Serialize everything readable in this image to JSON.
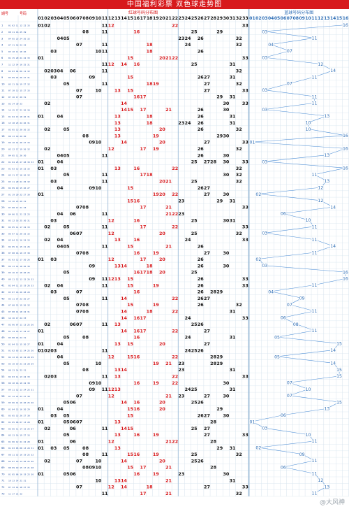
{
  "page": {
    "title": "中国福利彩票  双色球走势图"
  },
  "header": {
    "period_label": "期号",
    "prize_label": "号码",
    "red_zone_label": "红球号码分布图",
    "blue_zone_label": "蓝球号码分布图",
    "red_numbers": [
      "01",
      "02",
      "03",
      "04",
      "05",
      "06",
      "07",
      "08",
      "09",
      "10",
      "11",
      "12",
      "13",
      "14",
      "15",
      "16",
      "17",
      "18",
      "19",
      "20",
      "21",
      "22",
      "23",
      "24",
      "25",
      "26",
      "27",
      "28",
      "29",
      "30",
      "31",
      "32",
      "33"
    ],
    "blue_numbers": [
      "01",
      "02",
      "03",
      "04",
      "05",
      "06",
      "07",
      "08",
      "09",
      "10",
      "11",
      "12",
      "13",
      "14",
      "15",
      "16"
    ]
  },
  "watermark": "@大风神",
  "colors": {
    "title_bg": "#d7191c",
    "grid_line": "#d7e3ee",
    "zone_divider": "#9ebcd8",
    "red_number": "#d7191c",
    "black_number": "#111111",
    "blue_number": "#2d6db5",
    "blue_line": "#4f8fd6",
    "period_text": "#1f4fa3"
  },
  "chart_data": {
    "type": "table",
    "title": "中国福利彩票  双色球走势图",
    "red_range": [
      1,
      33
    ],
    "blue_range": [
      1,
      16
    ],
    "draws": [
      {
        "reds": [
          1,
          2,
          11,
          12,
          22,
          33
        ],
        "blue": 16
      },
      {
        "reds": [
          8,
          11,
          16,
          25,
          29
        ],
        "blue": 3
      },
      {
        "reds": [
          4,
          5,
          23,
          24,
          26,
          32
        ],
        "blue": 11
      },
      {
        "reds": [
          7,
          11,
          18,
          24,
          32
        ],
        "blue": 4
      },
      {
        "reds": [
          3,
          10,
          11,
          18,
          26
        ],
        "blue": 7
      },
      {
        "reds": [
          1,
          15,
          20,
          21,
          22,
          33
        ],
        "blue": 3
      },
      {
        "reds": [
          11,
          12,
          14,
          16,
          25,
          31
        ],
        "blue": 12
      },
      {
        "reds": [
          2,
          3,
          4,
          6,
          11,
          32
        ],
        "blue": 14
      },
      {
        "reds": [
          3,
          9,
          15,
          26,
          27,
          31
        ],
        "blue": 11
      },
      {
        "reds": [
          5,
          11,
          18,
          19,
          27,
          32
        ],
        "blue": 7
      },
      {
        "reds": [
          7,
          10,
          13,
          15,
          27,
          33
        ],
        "blue": 3
      },
      {
        "reds": [
          7,
          16,
          17,
          29,
          31
        ],
        "blue": 11
      },
      {
        "reds": [
          2,
          14,
          30,
          33
        ],
        "blue": 11
      },
      {
        "reds": [
          14,
          15,
          17,
          21,
          26,
          30
        ],
        "blue": 3
      },
      {
        "reds": [
          1,
          4,
          13,
          18,
          26,
          31
        ],
        "blue": 13
      },
      {
        "reds": [
          13,
          18,
          23,
          24,
          26,
          31
        ],
        "blue": 10
      },
      {
        "reds": [
          2,
          5,
          13,
          20,
          26,
          32
        ],
        "blue": 10
      },
      {
        "reds": [
          8,
          13,
          19,
          29,
          30
        ],
        "blue": 16
      },
      {
        "reds": [
          9,
          10,
          14,
          20,
          27,
          33
        ],
        "blue": 1
      },
      {
        "reds": [
          2,
          12,
          17,
          19,
          26,
          32
        ],
        "blue": 16
      },
      {
        "reds": [
          4,
          5,
          11,
          26,
          30
        ],
        "blue": 13
      },
      {
        "reds": [
          1,
          4,
          25,
          27,
          28,
          30,
          33
        ],
        "blue": 3
      },
      {
        "reds": [
          1,
          3,
          13,
          16,
          22,
          32
        ],
        "blue": 16
      },
      {
        "reds": [
          5,
          11,
          17,
          18,
          30,
          32
        ],
        "blue": 11
      },
      {
        "reds": [
          3,
          11,
          20,
          21,
          25,
          32
        ],
        "blue": 13
      },
      {
        "reds": [
          4,
          9,
          10,
          15,
          26,
          27
        ],
        "blue": 12
      },
      {
        "reds": [
          1,
          19,
          20,
          22,
          27,
          30
        ],
        "blue": 2
      },
      {
        "reds": [
          15,
          16,
          23,
          29,
          31
        ],
        "blue": 12
      },
      {
        "reds": [
          7,
          8,
          17,
          21,
          33
        ],
        "blue": 14
      },
      {
        "reds": [
          4,
          6,
          11,
          21,
          22,
          23
        ],
        "blue": 6
      },
      {
        "reds": [
          3,
          12,
          16,
          25,
          30,
          31
        ],
        "blue": 10
      },
      {
        "reds": [
          2,
          5,
          11,
          17,
          22,
          33
        ],
        "blue": 11
      },
      {
        "reds": [
          6,
          7,
          12,
          20,
          25,
          32
        ],
        "blue": 3
      },
      {
        "reds": [
          2,
          4,
          13,
          16,
          24,
          33
        ],
        "blue": 11
      },
      {
        "reds": [
          4,
          5,
          11,
          15,
          21,
          26
        ],
        "blue": 14
      },
      {
        "reds": [
          7,
          8,
          16,
          19,
          27,
          30
        ],
        "blue": 11
      },
      {
        "reds": [
          1,
          3,
          12,
          17,
          20,
          26
        ],
        "blue": 2
      },
      {
        "reds": [
          9,
          13,
          14,
          18,
          26,
          30
        ],
        "blue": 3
      },
      {
        "reds": [
          5,
          16,
          17,
          18,
          20,
          25
        ],
        "blue": 16
      },
      {
        "reds": [
          9,
          11,
          12,
          13,
          15,
          26,
          33
        ],
        "blue": 16
      },
      {
        "reds": [
          2,
          4,
          11,
          15,
          19,
          26,
          33
        ],
        "blue": 11
      },
      {
        "reds": [
          3,
          7,
          16,
          26,
          28,
          29
        ],
        "blue": 4
      },
      {
        "reds": [
          5,
          11,
          14,
          22,
          26,
          27
        ],
        "blue": 9
      },
      {
        "reds": [
          7,
          8,
          15,
          19,
          26,
          32
        ],
        "blue": 7
      },
      {
        "reds": [
          7,
          8,
          14,
          18,
          22,
          31
        ],
        "blue": 11
      },
      {
        "reds": [
          14,
          16,
          17,
          24,
          33
        ],
        "blue": 6
      },
      {
        "reds": [
          2,
          6,
          7,
          11,
          13,
          25,
          26
        ],
        "blue": 8
      },
      {
        "reds": [
          1,
          14,
          16,
          17,
          22,
          27
        ],
        "blue": 11
      },
      {
        "reds": [
          5,
          8,
          16,
          24,
          31
        ],
        "blue": 5
      },
      {
        "reds": [
          1,
          4,
          13,
          15,
          20,
          27
        ],
        "blue": 15
      },
      {
        "reds": [
          1,
          2,
          3,
          11,
          24,
          25,
          26
        ],
        "blue": 14
      },
      {
        "reds": [
          4,
          12,
          15,
          16,
          22,
          28,
          29
        ],
        "blue": 5
      },
      {
        "reds": [
          5,
          10,
          19,
          21,
          23,
          28,
          29
        ],
        "blue": 14
      },
      {
        "reds": [
          8,
          13,
          14,
          23,
          31
        ],
        "blue": 15
      },
      {
        "reds": [
          2,
          3,
          11,
          13,
          22,
          33
        ],
        "blue": 15
      },
      {
        "reds": [
          9,
          10,
          16,
          19,
          22,
          30
        ],
        "blue": 7
      },
      {
        "reds": [
          9,
          11,
          12,
          13,
          24,
          25,
          31
        ],
        "blue": 10
      },
      {
        "reds": [
          7,
          12,
          21,
          23,
          27,
          30
        ],
        "blue": 7
      },
      {
        "reds": [
          5,
          6,
          14,
          16,
          20,
          25,
          26
        ],
        "blue": 15
      },
      {
        "reds": [
          1,
          4,
          15,
          16,
          20,
          29
        ],
        "blue": 13
      },
      {
        "reds": [
          3,
          5,
          15,
          26,
          27,
          30
        ],
        "blue": 6
      },
      {
        "reds": [
          1,
          5,
          6,
          7,
          13,
          28
        ],
        "blue": 1
      },
      {
        "reds": [
          2,
          6,
          11,
          14,
          15,
          25,
          27
        ],
        "blue": 3
      },
      {
        "reds": [
          5,
          13,
          16,
          19,
          27,
          33
        ],
        "blue": 10
      },
      {
        "reds": [
          1,
          6,
          12,
          21,
          22,
          28
        ],
        "blue": 11
      },
      {
        "reds": [
          1,
          3,
          5,
          8,
          13,
          29,
          31
        ],
        "blue": 2
      },
      {
        "reds": [
          8,
          11,
          15,
          16,
          19,
          25,
          32
        ],
        "blue": 9
      },
      {
        "reds": [
          2,
          7,
          10,
          14,
          20,
          25,
          26
        ],
        "blue": 11
      },
      {
        "reds": [
          8,
          9,
          10,
          15,
          17,
          21,
          28
        ],
        "blue": 6
      },
      {
        "reds": [
          1,
          5,
          6,
          16,
          19,
          23,
          30
        ],
        "blue": 11
      },
      {
        "reds": [
          10,
          13,
          14,
          21,
          31
        ],
        "blue": 12
      },
      {
        "reds": [
          7,
          12,
          14,
          18,
          27,
          33
        ],
        "blue": 13
      },
      {
        "reds": [
          11,
          17,
          21,
          32
        ],
        "blue": 11
      }
    ]
  }
}
